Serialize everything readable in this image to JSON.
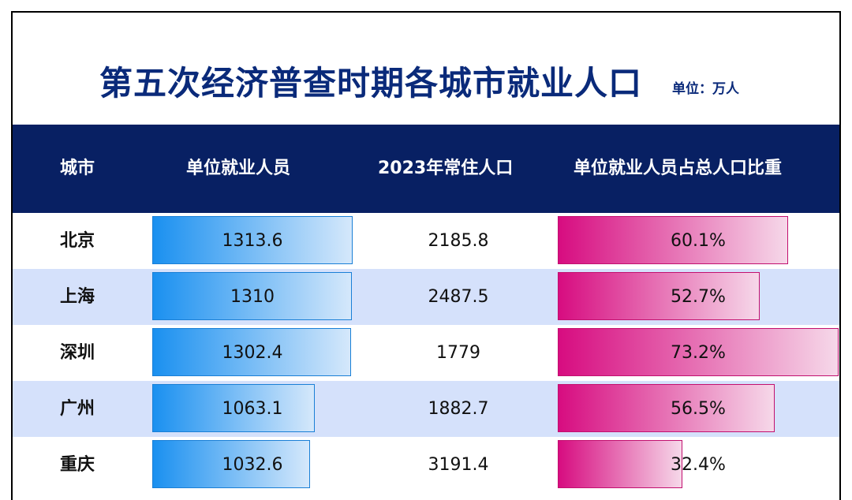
{
  "chart_data": {
    "type": "table",
    "title": "第五次经济普查时期各城市就业人口",
    "unit": "单位：万人",
    "columns": [
      "城市",
      "单位就业人员",
      "2023年常住人口",
      "单位就业人员占总人口比重"
    ],
    "rows": [
      {
        "city": "北京",
        "employed": 1313.6,
        "employed_text": "1313.6",
        "population": "2185.8",
        "ratio": 60.1,
        "ratio_text": "60.1%"
      },
      {
        "city": "上海",
        "employed": 1310,
        "employed_text": "1310",
        "population": "2487.5",
        "ratio": 52.7,
        "ratio_text": "52.7%"
      },
      {
        "city": "深圳",
        "employed": 1302.4,
        "employed_text": "1302.4",
        "population": "1779",
        "ratio": 73.2,
        "ratio_text": "73.2%"
      },
      {
        "city": "广州",
        "employed": 1063.1,
        "employed_text": "1063.1",
        "population": "1882.7",
        "ratio": 56.5,
        "ratio_text": "56.5%"
      },
      {
        "city": "重庆",
        "employed": 1032.6,
        "employed_text": "1032.6",
        "population": "3191.4",
        "ratio": 32.4,
        "ratio_text": "32.4%"
      }
    ],
    "colors": {
      "title": "#0a2a7a",
      "header_bg": "#082063",
      "alt_row_bg": "#d5e1fb",
      "blue_bar": "#1a90f0",
      "pink_bar": "#d70c80"
    }
  }
}
